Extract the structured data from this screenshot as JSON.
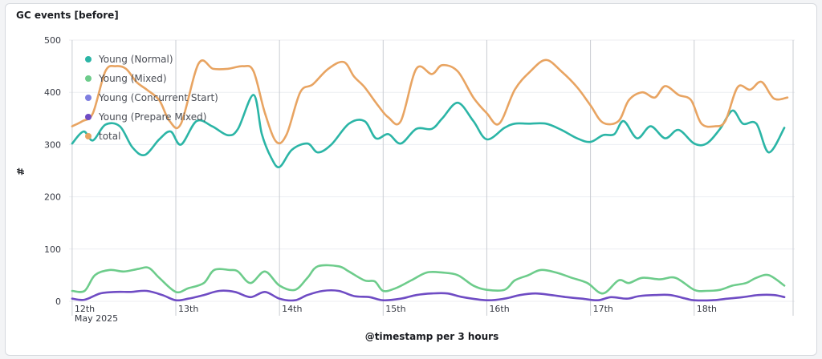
{
  "panel": {
    "title": "GC events [before]"
  },
  "chart_data": {
    "type": "line",
    "title": "GC events [before]",
    "xlabel": "@timestamp per 3 hours",
    "ylabel": "#",
    "ylim": [
      0,
      500
    ],
    "yticks": [
      0,
      100,
      200,
      300,
      400,
      500
    ],
    "xlim": [
      -0.03,
      6.97
    ],
    "xticks": [
      {
        "pos": 0,
        "label": "12th",
        "sublabel": "May 2025"
      },
      {
        "pos": 1,
        "label": "13th"
      },
      {
        "pos": 2,
        "label": "14th"
      },
      {
        "pos": 3,
        "label": "15th"
      },
      {
        "pos": 4,
        "label": "16th"
      },
      {
        "pos": 5,
        "label": "17th"
      },
      {
        "pos": 6,
        "label": "18th"
      }
    ],
    "grid": true,
    "legend": "top-left",
    "series": [
      {
        "name": "Young (Normal)",
        "color": "#2bb5a6",
        "points": [
          [
            0,
            302
          ],
          [
            0.11,
            325
          ],
          [
            0.2,
            308
          ],
          [
            0.32,
            338
          ],
          [
            0.46,
            335
          ],
          [
            0.58,
            295
          ],
          [
            0.7,
            280
          ],
          [
            0.84,
            310
          ],
          [
            0.95,
            325
          ],
          [
            1.05,
            300
          ],
          [
            1.2,
            345
          ],
          [
            1.35,
            335
          ],
          [
            1.5,
            318
          ],
          [
            1.6,
            330
          ],
          [
            1.75,
            395
          ],
          [
            1.83,
            320
          ],
          [
            1.92,
            275
          ],
          [
            2,
            257
          ],
          [
            2.12,
            290
          ],
          [
            2.27,
            302
          ],
          [
            2.37,
            285
          ],
          [
            2.5,
            300
          ],
          [
            2.67,
            340
          ],
          [
            2.82,
            345
          ],
          [
            2.93,
            312
          ],
          [
            3.05,
            320
          ],
          [
            3.17,
            302
          ],
          [
            3.32,
            330
          ],
          [
            3.47,
            330
          ],
          [
            3.57,
            350
          ],
          [
            3.72,
            380
          ],
          [
            3.87,
            345
          ],
          [
            4,
            310
          ],
          [
            4.17,
            332
          ],
          [
            4.27,
            340
          ],
          [
            4.4,
            340
          ],
          [
            4.57,
            340
          ],
          [
            4.72,
            328
          ],
          [
            4.87,
            312
          ],
          [
            5,
            305
          ],
          [
            5.12,
            318
          ],
          [
            5.23,
            320
          ],
          [
            5.32,
            345
          ],
          [
            5.45,
            312
          ],
          [
            5.58,
            335
          ],
          [
            5.72,
            312
          ],
          [
            5.85,
            328
          ],
          [
            6,
            302
          ],
          [
            6.12,
            302
          ],
          [
            6.25,
            330
          ],
          [
            6.37,
            365
          ],
          [
            6.47,
            340
          ],
          [
            6.6,
            340
          ],
          [
            6.72,
            285
          ],
          [
            6.87,
            332
          ]
        ]
      },
      {
        "name": "Young (Mixed)",
        "color": "#6dcc8b",
        "points": [
          [
            0,
            20
          ],
          [
            0.12,
            20
          ],
          [
            0.22,
            50
          ],
          [
            0.36,
            60
          ],
          [
            0.5,
            57
          ],
          [
            0.64,
            62
          ],
          [
            0.74,
            64
          ],
          [
            0.84,
            45
          ],
          [
            1,
            18
          ],
          [
            1.12,
            25
          ],
          [
            1.27,
            35
          ],
          [
            1.37,
            60
          ],
          [
            1.52,
            60
          ],
          [
            1.6,
            57
          ],
          [
            1.72,
            35
          ],
          [
            1.86,
            57
          ],
          [
            2,
            30
          ],
          [
            2.15,
            22
          ],
          [
            2.27,
            45
          ],
          [
            2.37,
            67
          ],
          [
            2.57,
            67
          ],
          [
            2.67,
            57
          ],
          [
            2.82,
            40
          ],
          [
            2.92,
            38
          ],
          [
            3,
            20
          ],
          [
            3.12,
            25
          ],
          [
            3.27,
            40
          ],
          [
            3.42,
            55
          ],
          [
            3.57,
            55
          ],
          [
            3.72,
            50
          ],
          [
            3.87,
            30
          ],
          [
            4,
            22
          ],
          [
            4.17,
            22
          ],
          [
            4.27,
            40
          ],
          [
            4.4,
            50
          ],
          [
            4.52,
            60
          ],
          [
            4.67,
            55
          ],
          [
            4.82,
            45
          ],
          [
            4.97,
            35
          ],
          [
            5.12,
            15
          ],
          [
            5.27,
            40
          ],
          [
            5.37,
            35
          ],
          [
            5.5,
            45
          ],
          [
            5.67,
            42
          ],
          [
            5.82,
            45
          ],
          [
            6,
            22
          ],
          [
            6.12,
            20
          ],
          [
            6.25,
            22
          ],
          [
            6.37,
            30
          ],
          [
            6.5,
            35
          ],
          [
            6.6,
            45
          ],
          [
            6.72,
            50
          ],
          [
            6.87,
            30
          ]
        ]
      },
      {
        "name": "Young (Concurrent Start)",
        "color": "#7f7fe0",
        "points": []
      },
      {
        "name": "Young (Prepare Mixed)",
        "color": "#6f4cc4",
        "points": [
          [
            0,
            5
          ],
          [
            0.12,
            3
          ],
          [
            0.27,
            15
          ],
          [
            0.42,
            18
          ],
          [
            0.57,
            18
          ],
          [
            0.72,
            20
          ],
          [
            0.87,
            12
          ],
          [
            1,
            2
          ],
          [
            1.12,
            5
          ],
          [
            1.27,
            12
          ],
          [
            1.42,
            20
          ],
          [
            1.57,
            18
          ],
          [
            1.72,
            8
          ],
          [
            1.86,
            18
          ],
          [
            2,
            5
          ],
          [
            2.15,
            2
          ],
          [
            2.27,
            12
          ],
          [
            2.42,
            20
          ],
          [
            2.57,
            20
          ],
          [
            2.72,
            10
          ],
          [
            2.87,
            8
          ],
          [
            3,
            2
          ],
          [
            3.17,
            5
          ],
          [
            3.32,
            12
          ],
          [
            3.47,
            15
          ],
          [
            3.62,
            15
          ],
          [
            3.77,
            8
          ],
          [
            4,
            2
          ],
          [
            4.17,
            5
          ],
          [
            4.32,
            12
          ],
          [
            4.47,
            15
          ],
          [
            4.62,
            12
          ],
          [
            4.77,
            8
          ],
          [
            4.92,
            5
          ],
          [
            5.07,
            2
          ],
          [
            5.2,
            8
          ],
          [
            5.35,
            5
          ],
          [
            5.47,
            10
          ],
          [
            5.62,
            12
          ],
          [
            5.77,
            12
          ],
          [
            5.92,
            5
          ],
          [
            6,
            2
          ],
          [
            6.17,
            2
          ],
          [
            6.32,
            5
          ],
          [
            6.47,
            8
          ],
          [
            6.62,
            12
          ],
          [
            6.77,
            12
          ],
          [
            6.87,
            8
          ]
        ]
      },
      {
        "name": "total",
        "color": "#e8a462",
        "points": [
          [
            0,
            335
          ],
          [
            0.1,
            345
          ],
          [
            0.2,
            360
          ],
          [
            0.32,
            440
          ],
          [
            0.42,
            450
          ],
          [
            0.52,
            445
          ],
          [
            0.62,
            420
          ],
          [
            0.72,
            405
          ],
          [
            0.84,
            385
          ],
          [
            0.94,
            345
          ],
          [
            1.05,
            340
          ],
          [
            1.22,
            455
          ],
          [
            1.36,
            445
          ],
          [
            1.5,
            445
          ],
          [
            1.65,
            450
          ],
          [
            1.75,
            440
          ],
          [
            1.86,
            360
          ],
          [
            1.97,
            305
          ],
          [
            2.07,
            320
          ],
          [
            2.2,
            400
          ],
          [
            2.32,
            415
          ],
          [
            2.47,
            445
          ],
          [
            2.62,
            458
          ],
          [
            2.72,
            430
          ],
          [
            2.82,
            410
          ],
          [
            2.95,
            375
          ],
          [
            3.05,
            352
          ],
          [
            3.17,
            345
          ],
          [
            3.32,
            445
          ],
          [
            3.47,
            435
          ],
          [
            3.57,
            452
          ],
          [
            3.72,
            440
          ],
          [
            3.87,
            390
          ],
          [
            4,
            360
          ],
          [
            4.12,
            340
          ],
          [
            4.27,
            405
          ],
          [
            4.42,
            440
          ],
          [
            4.57,
            462
          ],
          [
            4.72,
            440
          ],
          [
            4.87,
            410
          ],
          [
            5,
            375
          ],
          [
            5.12,
            342
          ],
          [
            5.27,
            345
          ],
          [
            5.37,
            385
          ],
          [
            5.5,
            400
          ],
          [
            5.62,
            390
          ],
          [
            5.72,
            412
          ],
          [
            5.85,
            395
          ],
          [
            5.97,
            385
          ],
          [
            6.07,
            340
          ],
          [
            6.2,
            335
          ],
          [
            6.3,
            345
          ],
          [
            6.42,
            410
          ],
          [
            6.54,
            405
          ],
          [
            6.65,
            420
          ],
          [
            6.77,
            388
          ],
          [
            6.9,
            390
          ]
        ]
      }
    ]
  }
}
